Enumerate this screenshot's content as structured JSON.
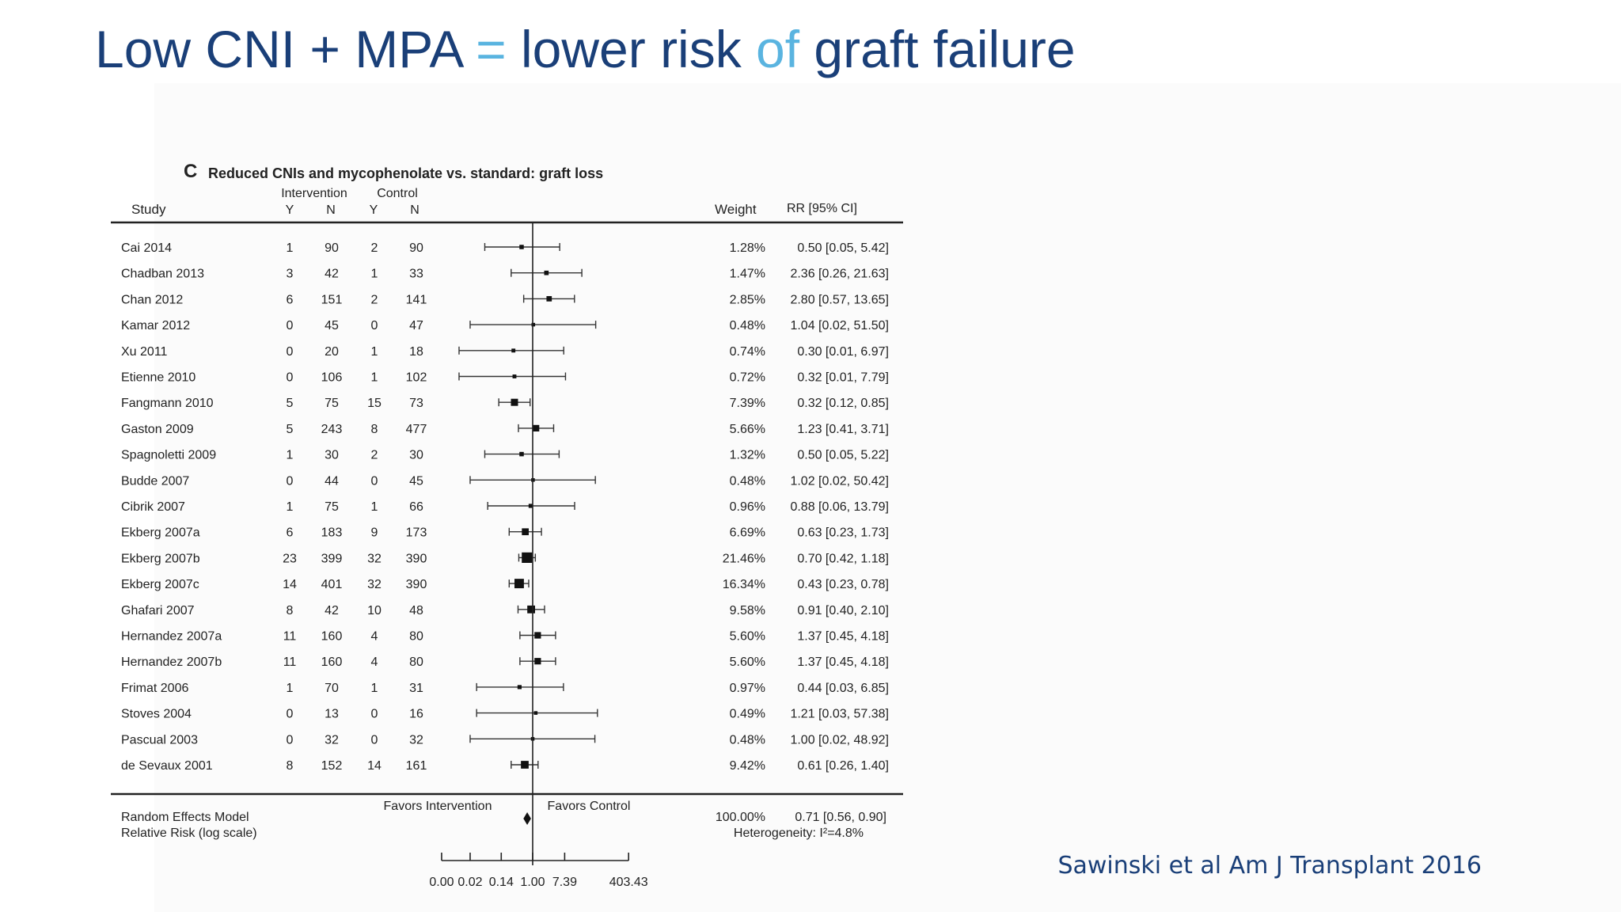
{
  "title": {
    "part1": "Low CNI + MPA ",
    "eq": "=",
    "part2": " lower risk ",
    "of": "of",
    "part3": " graft failure"
  },
  "citation": "Sawinski et al Am J Transplant 2016",
  "colors": {
    "title": "#1a3f78",
    "accent": "#5ab4e0",
    "ink": "#222222"
  },
  "chart_data": {
    "type": "forest",
    "panel_letter": "C",
    "title": "Reduced CNIs and mycophenolate vs. standard: graft loss",
    "headers": {
      "study": "Study",
      "intervention": "Intervention",
      "control": "Control",
      "y": "Y",
      "n": "N",
      "weight": "Weight",
      "rr": "RR [95% CI]"
    },
    "studies": [
      {
        "study": "Cai 2014",
        "iy": "1",
        "in": "90",
        "cy": "2",
        "cn": "90",
        "weight": "1.28%",
        "rr": 0.5,
        "lo": 0.05,
        "hi": 5.42,
        "rr_text": "0.50 [0.05, 5.42]"
      },
      {
        "study": "Chadban 2013",
        "iy": "3",
        "in": "42",
        "cy": "1",
        "cn": "33",
        "weight": "1.47%",
        "rr": 2.36,
        "lo": 0.26,
        "hi": 21.63,
        "rr_text": "2.36 [0.26, 21.63]"
      },
      {
        "study": "Chan 2012",
        "iy": "6",
        "in": "151",
        "cy": "2",
        "cn": "141",
        "weight": "2.85%",
        "rr": 2.8,
        "lo": 0.57,
        "hi": 13.65,
        "rr_text": "2.80 [0.57, 13.65]"
      },
      {
        "study": "Kamar 2012",
        "iy": "0",
        "in": "45",
        "cy": "0",
        "cn": "47",
        "weight": "0.48%",
        "rr": 1.04,
        "lo": 0.02,
        "hi": 51.5,
        "rr_text": "1.04 [0.02, 51.50]"
      },
      {
        "study": "Xu 2011",
        "iy": "0",
        "in": "20",
        "cy": "1",
        "cn": "18",
        "weight": "0.74%",
        "rr": 0.3,
        "lo": 0.01,
        "hi": 6.97,
        "rr_text": "0.30 [0.01, 6.97]"
      },
      {
        "study": "Etienne 2010",
        "iy": "0",
        "in": "106",
        "cy": "1",
        "cn": "102",
        "weight": "0.72%",
        "rr": 0.32,
        "lo": 0.01,
        "hi": 7.79,
        "rr_text": "0.32 [0.01, 7.79]"
      },
      {
        "study": "Fangmann 2010",
        "iy": "5",
        "in": "75",
        "cy": "15",
        "cn": "73",
        "weight": "7.39%",
        "rr": 0.32,
        "lo": 0.12,
        "hi": 0.85,
        "rr_text": "0.32 [0.12, 0.85]"
      },
      {
        "study": "Gaston 2009",
        "iy": "5",
        "in": "243",
        "cy": "8",
        "cn": "477",
        "weight": "5.66%",
        "rr": 1.23,
        "lo": 0.41,
        "hi": 3.71,
        "rr_text": "1.23 [0.41, 3.71]"
      },
      {
        "study": "Spagnoletti 2009",
        "iy": "1",
        "in": "30",
        "cy": "2",
        "cn": "30",
        "weight": "1.32%",
        "rr": 0.5,
        "lo": 0.05,
        "hi": 5.22,
        "rr_text": "0.50 [0.05, 5.22]"
      },
      {
        "study": "Budde 2007",
        "iy": "0",
        "in": "44",
        "cy": "0",
        "cn": "45",
        "weight": "0.48%",
        "rr": 1.02,
        "lo": 0.02,
        "hi": 50.42,
        "rr_text": "1.02 [0.02, 50.42]"
      },
      {
        "study": "Cibrik 2007",
        "iy": "1",
        "in": "75",
        "cy": "1",
        "cn": "66",
        "weight": "0.96%",
        "rr": 0.88,
        "lo": 0.06,
        "hi": 13.79,
        "rr_text": "0.88 [0.06, 13.79]"
      },
      {
        "study": "Ekberg 2007a",
        "iy": "6",
        "in": "183",
        "cy": "9",
        "cn": "173",
        "weight": "6.69%",
        "rr": 0.63,
        "lo": 0.23,
        "hi": 1.73,
        "rr_text": "0.63 [0.23, 1.73]"
      },
      {
        "study": "Ekberg 2007b",
        "iy": "23",
        "in": "399",
        "cy": "32",
        "cn": "390",
        "weight": "21.46%",
        "rr": 0.7,
        "lo": 0.42,
        "hi": 1.18,
        "rr_text": "0.70 [0.42, 1.18]"
      },
      {
        "study": "Ekberg 2007c",
        "iy": "14",
        "in": "401",
        "cy": "32",
        "cn": "390",
        "weight": "16.34%",
        "rr": 0.43,
        "lo": 0.23,
        "hi": 0.78,
        "rr_text": "0.43 [0.23, 0.78]"
      },
      {
        "study": "Ghafari 2007",
        "iy": "8",
        "in": "42",
        "cy": "10",
        "cn": "48",
        "weight": "9.58%",
        "rr": 0.91,
        "lo": 0.4,
        "hi": 2.1,
        "rr_text": "0.91 [0.40, 2.10]"
      },
      {
        "study": "Hernandez 2007a",
        "iy": "11",
        "in": "160",
        "cy": "4",
        "cn": "80",
        "weight": "5.60%",
        "rr": 1.37,
        "lo": 0.45,
        "hi": 4.18,
        "rr_text": "1.37 [0.45, 4.18]"
      },
      {
        "study": "Hernandez 2007b",
        "iy": "11",
        "in": "160",
        "cy": "4",
        "cn": "80",
        "weight": "5.60%",
        "rr": 1.37,
        "lo": 0.45,
        "hi": 4.18,
        "rr_text": "1.37 [0.45, 4.18]"
      },
      {
        "study": "Frimat 2006",
        "iy": "1",
        "in": "70",
        "cy": "1",
        "cn": "31",
        "weight": "0.97%",
        "rr": 0.44,
        "lo": 0.03,
        "hi": 6.85,
        "rr_text": "0.44 [0.03, 6.85]"
      },
      {
        "study": "Stoves 2004",
        "iy": "0",
        "in": "13",
        "cy": "0",
        "cn": "16",
        "weight": "0.49%",
        "rr": 1.21,
        "lo": 0.03,
        "hi": 57.38,
        "rr_text": "1.21 [0.03, 57.38]"
      },
      {
        "study": "Pascual 2003",
        "iy": "0",
        "in": "32",
        "cy": "0",
        "cn": "32",
        "weight": "0.48%",
        "rr": 1.0,
        "lo": 0.02,
        "hi": 48.92,
        "rr_text": "1.00 [0.02, 48.92]"
      },
      {
        "study": "de Sevaux 2001",
        "iy": "8",
        "in": "152",
        "cy": "14",
        "cn": "161",
        "weight": "9.42%",
        "rr": 0.61,
        "lo": 0.26,
        "hi": 1.4,
        "rr_text": "0.61 [0.26, 1.40]"
      }
    ],
    "summary": {
      "label1": "Random Effects Model",
      "label2": "Relative Risk (log scale)",
      "weight": "100.00%",
      "rr": 0.71,
      "lo": 0.56,
      "hi": 0.9,
      "rr_text": "0.71 [0.56, 0.90]",
      "heterogeneity": "Heterogeneity: I²=4.8%"
    },
    "favors_left": "Favors Intervention",
    "favors_right": "Favors Control",
    "x_scale": "log",
    "x_ticks": [
      {
        "value": 0.0,
        "label": "0.00"
      },
      {
        "value": 0.02,
        "label": "0.02"
      },
      {
        "value": 0.14,
        "label": "0.14"
      },
      {
        "value": 1.0,
        "label": "1.00"
      },
      {
        "value": 7.39,
        "label": "7.39"
      },
      {
        "value": 403.43,
        "label": "403.43"
      }
    ],
    "reference_line": 1.0
  }
}
